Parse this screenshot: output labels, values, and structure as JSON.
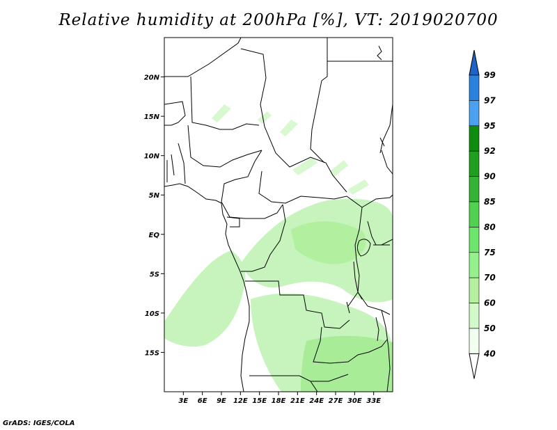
{
  "title": "Relative humidity at 200hPa [%], VT: 2019020700",
  "footer": "GrADS: IGES/COLA",
  "map": {
    "lon_range": [
      0,
      36
    ],
    "lat_range": [
      -20,
      25
    ],
    "lat_ticks": [
      {
        "value": 20,
        "label": "20N"
      },
      {
        "value": 15,
        "label": "15N"
      },
      {
        "value": 10,
        "label": "10N"
      },
      {
        "value": 5,
        "label": "5N"
      },
      {
        "value": 0,
        "label": "EQ"
      },
      {
        "value": -5,
        "label": "5S"
      },
      {
        "value": -10,
        "label": "10S"
      },
      {
        "value": -15,
        "label": "15S"
      }
    ],
    "lon_ticks": [
      {
        "value": 3,
        "label": "3E"
      },
      {
        "value": 6,
        "label": "6E"
      },
      {
        "value": 9,
        "label": "9E"
      },
      {
        "value": 12,
        "label": "12E"
      },
      {
        "value": 15,
        "label": "15E"
      },
      {
        "value": 18,
        "label": "18E"
      },
      {
        "value": 21,
        "label": "21E"
      },
      {
        "value": 24,
        "label": "24E"
      },
      {
        "value": 27,
        "label": "27E"
      },
      {
        "value": 30,
        "label": "30E"
      },
      {
        "value": 33,
        "label": "33E"
      }
    ]
  },
  "colorbar": {
    "levels": [
      {
        "label": "99",
        "color": "#1e64c8"
      },
      {
        "label": "97",
        "color": "#2a82dc"
      },
      {
        "label": "95",
        "color": "#4ba0f0"
      },
      {
        "label": "92",
        "color": "#0e8c0e"
      },
      {
        "label": "90",
        "color": "#1ea01e"
      },
      {
        "label": "85",
        "color": "#34b434"
      },
      {
        "label": "80",
        "color": "#50d250"
      },
      {
        "label": "75",
        "color": "#6ee66e"
      },
      {
        "label": "70",
        "color": "#96f08c"
      },
      {
        "label": "60",
        "color": "#b4f0a0"
      },
      {
        "label": "50",
        "color": "#d2fac8"
      },
      {
        "label": "40",
        "color": "#f0fff0"
      }
    ],
    "top_triangle_color": "#1e64c8",
    "bottom_triangle_color": "#ffffff"
  }
}
